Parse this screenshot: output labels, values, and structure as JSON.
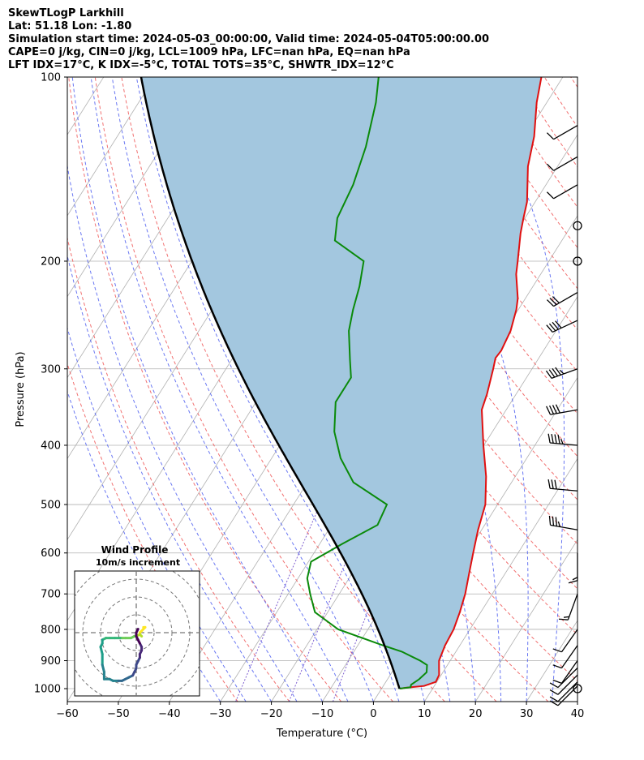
{
  "header": {
    "line1": "SkewTLogP Larkhill",
    "line2": "Lat: 51.18   Lon: -1.80",
    "line3": "Simulation start time: 2024-05-03_00:00:00, Valid time: 2024-05-04T05:00:00.00",
    "line4": "CAPE=0 j/kg, CIN=0 j/kg, LCL=1009 hPa, LFC=nan hPa, EQ=nan hPa",
    "line5": "LFT IDX=17°C, K IDX=-5°C, TOTAL TOTS=35°C, SHWTR_IDX=12°C"
  },
  "chart_data": [
    {
      "type": "line",
      "chart": "skew-t log-p",
      "xlabel": "Temperature (°C)",
      "ylabel": "Pressure (hPa)",
      "xlim": [
        -60,
        40
      ],
      "ylim": [
        1050,
        100
      ],
      "y_scale": "log",
      "x_ticks": [
        "−60",
        "−50",
        "−40",
        "−30",
        "−20",
        "−10",
        "0",
        "10",
        "20",
        "30",
        "40"
      ],
      "x_tick_values": [
        -60,
        -50,
        -40,
        -30,
        -20,
        -10,
        0,
        10,
        20,
        30,
        40
      ],
      "y_ticks": [
        "1000",
        "900",
        "800",
        "700",
        "600",
        "500",
        "400",
        "300",
        "200",
        "100"
      ],
      "y_tick_values": [
        1000,
        900,
        800,
        700,
        600,
        500,
        400,
        300,
        200,
        100
      ],
      "grid": true,
      "colors": {
        "temperature": "#e01010",
        "dewpoint": "#0a8a0a",
        "parcel": "#000000",
        "shade": "#a3c7df",
        "isotherm": "#b0b0b0",
        "dry_adiabat": "#f06060",
        "moist_adiabat": "#4f5ff0",
        "mixing_ratio": "#7f5fd0"
      },
      "series": [
        {
          "key": "temperature",
          "pressure": [
            1000,
            997,
            990,
            975,
            950,
            925,
            900,
            850,
            800,
            750,
            700,
            650,
            600,
            550,
            500,
            450,
            400,
            350,
            330,
            300,
            288,
            280,
            260,
            240,
            230,
            210,
            200,
            180,
            170,
            160,
            140,
            125,
            110,
            100
          ],
          "temp": [
            3.8,
            4.5,
            8.0,
            9.8,
            9.6,
            8.7,
            7.8,
            7.1,
            6.8,
            5.9,
            4.7,
            3.0,
            1.2,
            -0.7,
            -2.4,
            -5.7,
            -10.1,
            -14.8,
            -15.7,
            -17.6,
            -18.5,
            -18.3,
            -18.9,
            -20.4,
            -21.5,
            -24.8,
            -26.1,
            -29.0,
            -30.3,
            -31.6,
            -35.8,
            -38.3,
            -42.0,
            -44.2
          ]
        },
        {
          "key": "dewpoint",
          "pressure": [
            1000,
            995,
            985,
            965,
            940,
            915,
            900,
            870,
            850,
            800,
            750,
            700,
            660,
            620,
            580,
            540,
            500,
            460,
            420,
            380,
            340,
            310,
            290,
            260,
            240,
            220,
            200,
            185,
            170,
            150,
            130,
            110,
            100
          ],
          "temp": [
            3.5,
            5.5,
            5.3,
            6.2,
            6.8,
            6.0,
            4.1,
            -0.6,
            -5.0,
            -15.8,
            -22.5,
            -25.7,
            -28.2,
            -29.5,
            -25.6,
            -21.0,
            -21.7,
            -31.0,
            -36.5,
            -41.0,
            -44.4,
            -44.4,
            -46.8,
            -50.6,
            -52.4,
            -54.0,
            -56.3,
            -64.5,
            -66.8,
            -67.8,
            -70.0,
            -73.5,
            -76.1
          ]
        },
        {
          "key": "parcel",
          "start": {
            "pressure": 1000,
            "temp": 3.5
          },
          "end_pressure": 100
        }
      ]
    },
    {
      "type": "line",
      "chart": "hodograph",
      "title": "Wind Profile",
      "subtitle": "10m/s increment",
      "u": [
        4,
        5,
        4,
        3,
        2,
        2,
        3,
        2,
        0,
        -1,
        -1,
        -3,
        -6,
        -8,
        -9,
        -12,
        -15,
        -17,
        -19,
        -19,
        -20,
        -19,
        -19,
        -18,
        -18,
        -15,
        -13,
        -10,
        -8,
        -6,
        -4,
        -2,
        -1,
        0,
        0,
        1,
        2,
        2,
        3,
        3,
        2,
        1,
        0,
        0,
        1
      ],
      "v": [
        3,
        3,
        2,
        1,
        0,
        -1,
        -2,
        -1,
        -2,
        -2,
        -2,
        -3,
        -3,
        -3,
        -3,
        -3,
        -3,
        -3,
        -4,
        -6,
        -8,
        -12,
        -18,
        -22,
        -26,
        -26,
        -27,
        -27,
        -27,
        -26,
        -25,
        -24,
        -22,
        -20,
        -18,
        -16,
        -14,
        -12,
        -10,
        -8,
        -6,
        -4,
        -2,
        0,
        2
      ],
      "grid": true,
      "colormap": "viridis"
    }
  ],
  "barbs": {
    "color": "#000000",
    "items": [
      {
        "pressure": 1000,
        "calm": true
      },
      {
        "pressure": 990,
        "speed_kt": 10,
        "dir": 225
      },
      {
        "pressure": 975,
        "speed_kt": 10,
        "dir": 225
      },
      {
        "pressure": 950,
        "speed_kt": 10,
        "dir": 225
      },
      {
        "pressure": 925,
        "speed_kt": 10,
        "dir": 225
      },
      {
        "pressure": 900,
        "speed_kt": 10,
        "dir": 215
      },
      {
        "pressure": 850,
        "speed_kt": 10,
        "dir": 215
      },
      {
        "pressure": 800,
        "speed_kt": 10,
        "dir": 215
      },
      {
        "pressure": 700,
        "speed_kt": 15,
        "dir": 200
      },
      {
        "pressure": 600,
        "speed_kt": 15,
        "dir": 180
      },
      {
        "pressure": 550,
        "speed_kt": 35,
        "dir": 280
      },
      {
        "pressure": 475,
        "speed_kt": 30,
        "dir": 275
      },
      {
        "pressure": 400,
        "speed_kt": 45,
        "dir": 275
      },
      {
        "pressure": 350,
        "speed_kt": 40,
        "dir": 260
      },
      {
        "pressure": 300,
        "speed_kt": 45,
        "dir": 250
      },
      {
        "pressure": 250,
        "speed_kt": 40,
        "dir": 245
      },
      {
        "pressure": 225,
        "speed_kt": 30,
        "dir": 240
      },
      {
        "pressure": 200,
        "calm": true
      },
      {
        "pressure": 175,
        "calm": true
      },
      {
        "pressure": 150,
        "speed_kt": 10,
        "dir": 240
      },
      {
        "pressure": 135,
        "speed_kt": 10,
        "dir": 240
      },
      {
        "pressure": 120,
        "speed_kt": 10,
        "dir": 240
      }
    ]
  }
}
